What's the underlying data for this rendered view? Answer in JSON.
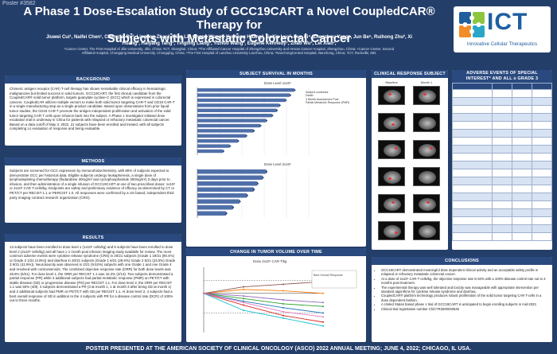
{
  "poster_tag": "Poster #3582",
  "title_line1": "A Phase 1 Dose-Escalation Study of GCC19CART a Novel CoupledCAR® Therapy for",
  "title_line2": "Subjects with Metastatic Colorectal Cancer",
  "authors_line1": "Jiuwei Cui¹, Naifei Chen¹, Chengfei Pu², Lingling Zhao², Ning Li², Chang Wang¹, Yusheng Huang³, SuXia Luo³, Xun Li⁴, Zhenzhou Yang⁵, Jun Be⁶, Ruihong Zhu², Xi",
  "authors_line2": "Huang², Haiyang Tang², Tingting Liang², Yizhuo Wang², Eugene Kennedy⁷, Zhao Wu², Lei Xiao²,",
  "affiliations_line1": "¹Cancer Center, The First Hospital of Jilin University, Jilin, China; ²ICT, Shanghai, China; ³The Affiliated Cancer Hospital of Zhengzhou University and Henan Cancer Hospital, Zhengzhou, China; ⁴Cancer Center, Second",
  "affiliations_line2": "Affiliated Hospital, Chongqing Medical University, Chongqing, China; ⁵The First Hospital of Lanzhou University Lanzhou, China; ⁶NanchongCentral Hospital, Nanchong, China; ⁷ICT, Rockville, MD;",
  "logo": {
    "name": "ICT",
    "subtitle": "Innovative Cellular Therapeutics",
    "accent": "#1f5f9e",
    "icon": "puzzle-logo-icon"
  },
  "sections": {
    "background": {
      "heading": "BACKGROUND",
      "body": "Chimeric antigen receptor (CAR) T-cell therapy has shown remarkable clinical efficacy in hematologic malignancies but limited success in solid tumors. GCC19CART, the first clinical candidate from the CoupledCAR® solid tumor platform, targets guanylate cyclase-C (GCC) which is expressed in colorectal cancers. CoupledCAR utilizes multiple vectors to make both solid tumor targeting CAR-T and CD19 CAR-T in a single manufacturing step as a single product candidate. Based upon observations from prior liquid tumor studies, the CD19 CAR-T promote the antigen independent proliferation and activation of the solid tumor targeting CAR T cells upon infusion back into the subject. A Phase 1 investigator initiated dose escalation trial is underway in China for patients with relapsed or refractory metastatic colorectal cancer. Based on a data cutoff of May 3, 2022, 21 subjects have been enrolled and treated, with all subjects completing ≥1 evaluation of response and being evaluable."
    },
    "methods": {
      "heading": "METHODS",
      "body": "Subjects are screened for GCC expression by immunohistochemistry, with 80% of subjects expected to demonstrate GCC per historical data. Eligible subjects undergo leukapheresis, a single dose of lymphodepleting chemotherapy (fludarabine 30mg/m² and cyclophosphamide 300mg/m²) 3 days prior to infusion, and then administration of a single infusion of GCC19CART at one of two prescribed doses: 1x10⁶ or 2x10⁶ CAR T-cells/kg. Endpoints are safety and preliminary evidence of efficacy as determined by CT or PET/CT per RECIST 1.1 or PERCIST 1.0. All responses were confirmed by a US based, independent third party imaging contract research organization (CRO)."
    },
    "results": {
      "heading": "RESULTS",
      "body": "13 subjects have been enrolled to dose level 1 (1x10⁶ cells/kg) and 8 subjects have been enrolled to dose level 2 (2x10⁶ cells/kg) and all have ≥ 1 month post infusion imaging study available for review. The most common adverse events were cytokine release syndrome (CRS) in 20/21 subjects (Grade 1 19/21 (90.4%) or Grade 3 1/21 (4.8%)) and diarrhea in 20/21 subjects (Grade 1 6/21 (28.6%) Grade 2 5/21 (23.8%) Grade 3 9/21 (42.9%)). Neurotoxicity was observed in 2/21 (9.52%) subjects with one Grade 1 and one Grade 4 and resolved with corticosteroids. The combined objective response rate (ORR) for both dose levels was 28.6% (6/21). For dose level 1, the ORR per RECIST 1.1 was 15.4% (2/13). Two subjects demonstrated a partial response (PR) while 3 additional subjects had partial metabolic response (PMR) on PET/CT with stable disease (SD) or progressive disease (PD) per RECIST 1.1. For dose level 2, the ORR per RECIST 1.1 was 50% (4/8). 4 subjects demonstrated a PR (3 at month 1, 1 at month 3 after being SD at month 1) and 2 additional subjects had PMR on PET/CT with SD per RECIST 1.1. At dose level 2, 4 subjects had a best overall response of SD in addition to the 4 subjects with PR for a disease control rate (DCR) of 100% out to three months."
    },
    "survival": {
      "heading": "SUBJECT SURVIVAL IN MONTHS",
      "plot1_title": "Dose Level 1x10⁶",
      "plot2_title": "Dose Level 2x10⁶",
      "legend": [
        "Subject continues",
        "Death",
        "3 Month Assessment Post",
        "Partial Metabolic Response (PMR)"
      ]
    },
    "tumor_volume": {
      "heading": "CHANGE IN TUMOR VOLUME OVER TIME",
      "chart_title": "Dose 2x10⁶ CAR-T/kg",
      "legend_title": "Best Overall Response"
    },
    "crc_scans": {
      "heading": "CLINICAL RESPONSE SUBJECT CRC-03-08",
      "col_labels": [
        "Baseline",
        "Month 1"
      ]
    },
    "adverse_events": {
      "heading_line1": "ADVERSE EVENTS OF SPECIAL",
      "heading_line2": "INTEREST* AND ALL ≥ GRADE 3"
    },
    "conclusions": {
      "heading": "CONCLUSIONS",
      "bullets": [
        "GCC19CART demonstrated meaningful dose dependent clinical activity and an acceptable safety profile in relapsed or refractory metastatic colorectal cancer.",
        "At a dose of 2x10⁶ CAR-T cells/kg, the objective response rate is 50% with a 100% disease control rate out to 3 months post treatment.",
        "The experimental therapy was well tolerated and toxicity was manageable with appropriate intervention per standard algorithms for cytokine release syndrome and diarrhea.",
        "CoupledCAR® platform technology produces robust proliferation of the solid tumor targeting CAR T-cells in a dose dependent fashion.",
        "A United States based phase 1 trial of GCC19CART is anticipated to begin enrolling subjects in mid-2022.",
        "Clinical trial registration number ChiCTR2000040645"
      ]
    }
  },
  "footer": "POSTER PRESENTED AT THE AMERICAN SOCIETY OF CLINICAL ONCOLOGY (ASCO) 2022 ANNUAL MEETING; JUNE 4, 2022; CHICAGO, IL USA.",
  "colors": {
    "background": "#243e6a",
    "panel_header": "#2a4a7f",
    "swimmer_bar": "#4f6fa8"
  },
  "chart_data": [
    {
      "type": "bar",
      "orientation": "horizontal",
      "title": "Dose Level 1x10⁶",
      "xlabel": "",
      "ylabel": "",
      "x_range": [
        0,
        15
      ],
      "values": [
        13.0,
        12.4,
        11.8,
        11.0,
        10.6,
        10.0,
        9.2,
        8.4,
        7.5,
        6.5,
        5.4,
        4.3,
        3.4
      ],
      "grid": true
    },
    {
      "type": "bar",
      "orientation": "horizontal",
      "title": "Dose Level 2x10⁶",
      "xlabel": "",
      "ylabel": "",
      "x_range": [
        0,
        15
      ],
      "values": [
        9.2,
        8.7,
        8.0,
        7.5,
        6.6,
        5.6,
        4.7,
        3.8
      ],
      "grid": true
    },
    {
      "type": "line",
      "title": "Dose 2x10⁶ CAR-T/kg",
      "xlabel": "",
      "ylabel": "",
      "x": [
        0,
        1,
        2,
        3
      ],
      "y_range": [
        -60,
        40
      ],
      "legend_position": "top-right",
      "legend_title": "Best Overall Response",
      "series": [
        {
          "values": [
            0,
            -12,
            -22,
            -30
          ]
        },
        {
          "values": [
            0,
            -18,
            -34,
            -44
          ]
        },
        {
          "values": [
            0,
            -8,
            -16,
            -20
          ]
        },
        {
          "values": [
            0,
            -4,
            -10,
            -14
          ]
        },
        {
          "values": [
            0,
            6,
            4,
            0
          ]
        },
        {
          "values": [
            0,
            -26,
            -38,
            -50
          ]
        },
        {
          "values": [
            0,
            10,
            14,
            18
          ]
        },
        {
          "values": [
            0,
            -14,
            -28,
            -36
          ]
        }
      ]
    }
  ]
}
